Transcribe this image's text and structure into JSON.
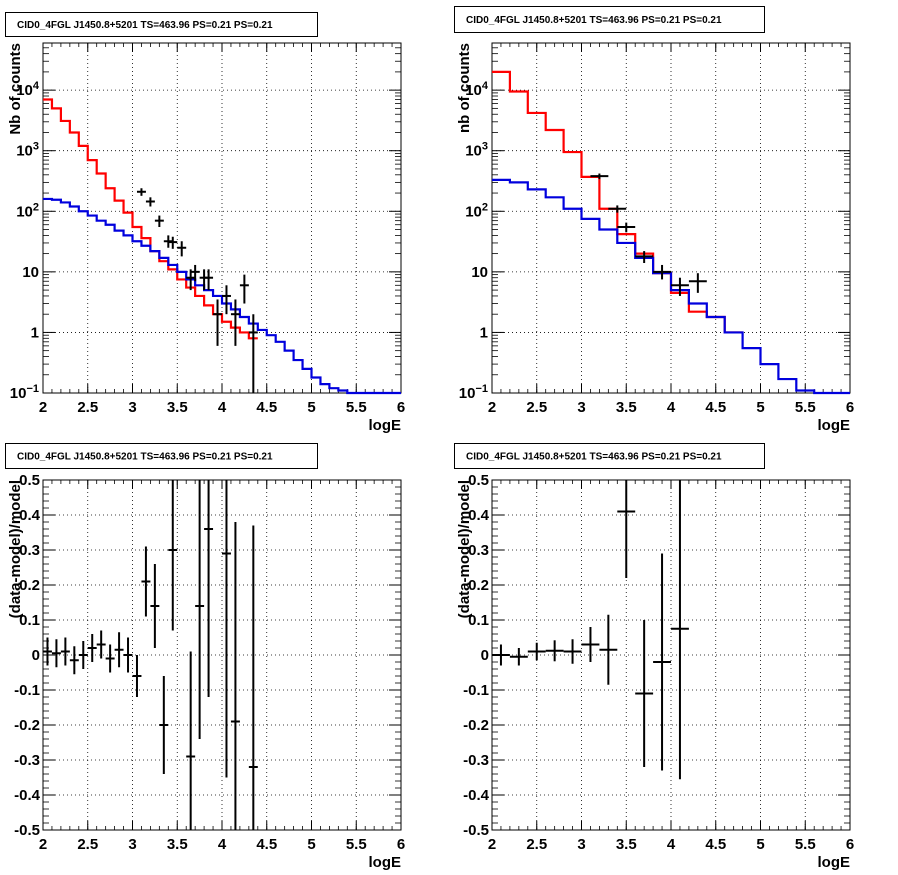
{
  "chart_data": [
    {
      "type": "line",
      "title": "CID0_4FGL J1450.8+5201 TS=463.96 PS=0.21 PS=0.21",
      "xlabel": "logE",
      "ylabel": "Nb of counts",
      "xlim": [
        2,
        6
      ],
      "ylim": [
        0.1,
        60000
      ],
      "yscale": "log",
      "grid": true,
      "x_ticks": [
        "2",
        "2.5",
        "3",
        "3.5",
        "4",
        "4.5",
        "5",
        "5.5",
        "6"
      ],
      "y_ticks": [
        {
          "value": 0.1,
          "base": "10",
          "exp": "−1"
        },
        {
          "value": 1,
          "label": "1"
        },
        {
          "value": 10,
          "label": "10"
        },
        {
          "value": 100,
          "base": "10",
          "exp": "2"
        },
        {
          "value": 1000,
          "base": "10",
          "exp": "3"
        },
        {
          "value": 10000,
          "base": "10",
          "exp": "4"
        }
      ],
      "series": [
        {
          "style": "step",
          "color": "#ff0000",
          "bin_edges": [
            2,
            2.1,
            2.2,
            2.3,
            2.4,
            2.5,
            2.6,
            2.7,
            2.8,
            2.9,
            3.0,
            3.1,
            3.2,
            3.3,
            3.4,
            3.5,
            3.6,
            3.7,
            3.8,
            3.9,
            4.0,
            4.1,
            4.2,
            4.3,
            4.4
          ],
          "values": [
            7000,
            5000,
            3100,
            2000,
            1200,
            700,
            420,
            240,
            150,
            95,
            55,
            36,
            22,
            15,
            11,
            7.5,
            5.5,
            4,
            2.8,
            2,
            1.5,
            1.2,
            1,
            0.8
          ]
        },
        {
          "style": "step",
          "color": "#0000dd",
          "bin_edges": [
            2,
            2.1,
            2.2,
            2.3,
            2.4,
            2.5,
            2.6,
            2.7,
            2.8,
            2.9,
            3.0,
            3.1,
            3.2,
            3.3,
            3.4,
            3.5,
            3.6,
            3.7,
            3.8,
            3.9,
            4.0,
            4.1,
            4.2,
            4.3,
            4.4,
            4.5,
            4.6,
            4.7,
            4.8,
            4.9,
            5.0,
            5.1,
            5.2,
            5.3,
            5.4,
            6.0
          ],
          "values": [
            160,
            155,
            140,
            120,
            100,
            85,
            70,
            60,
            48,
            40,
            32,
            27,
            22,
            17,
            13,
            10,
            7.5,
            6,
            5,
            4,
            3,
            2.4,
            1.8,
            1.4,
            1.1,
            0.9,
            0.7,
            0.5,
            0.35,
            0.25,
            0.18,
            0.14,
            0.12,
            0.11,
            0.1
          ]
        },
        {
          "style": "errorbar",
          "color": "#000000",
          "x": [
            3.1,
            3.2,
            3.3,
            3.4,
            3.45,
            3.55,
            3.65,
            3.7,
            3.8,
            3.85,
            3.95,
            4.05,
            4.15,
            4.25,
            4.35
          ],
          "xerr": [
            0.05,
            0.05,
            0.05,
            0.05,
            0.05,
            0.05,
            0.05,
            0.05,
            0.05,
            0.05,
            0.05,
            0.05,
            0.05,
            0.05,
            0.05
          ],
          "y": [
            210,
            145,
            70,
            32,
            31,
            25,
            8,
            10,
            8,
            8,
            2,
            4,
            2,
            6,
            1
          ],
          "ylo": [
            180,
            120,
            55,
            25,
            24,
            18,
            5,
            7,
            5,
            5,
            0.6,
            2,
            0.6,
            3,
            0.1
          ],
          "yhi": [
            240,
            170,
            85,
            40,
            38,
            32,
            11,
            13,
            11,
            11,
            3.5,
            6,
            3.5,
            9,
            2
          ]
        }
      ]
    },
    {
      "type": "line",
      "title": "CID0_4FGL J1450.8+5201 TS=463.96 PS=0.21 PS=0.21",
      "xlabel": "logE",
      "ylabel": "nb of counts",
      "xlim": [
        2,
        6
      ],
      "ylim": [
        0.1,
        60000
      ],
      "yscale": "log",
      "grid": true,
      "x_ticks": [
        "2",
        "2.5",
        "3",
        "3.5",
        "4",
        "4.5",
        "5",
        "5.5",
        "6"
      ],
      "y_ticks": [
        {
          "value": 0.1,
          "base": "10",
          "exp": "−1"
        },
        {
          "value": 1,
          "label": "1"
        },
        {
          "value": 10,
          "label": "10"
        },
        {
          "value": 100,
          "base": "10",
          "exp": "2"
        },
        {
          "value": 1000,
          "base": "10",
          "exp": "3"
        },
        {
          "value": 10000,
          "base": "10",
          "exp": "4"
        }
      ],
      "series": [
        {
          "style": "step",
          "color": "#ff0000",
          "bin_edges": [
            2,
            2.2,
            2.4,
            2.6,
            2.8,
            3.0,
            3.2,
            3.4,
            3.6,
            3.8,
            4.0,
            4.2,
            4.4,
            4.6,
            4.8
          ],
          "values": [
            20000,
            9500,
            4200,
            2200,
            950,
            370,
            110,
            42,
            20,
            9.5,
            4.5,
            2.2,
            1.8,
            1
          ]
        },
        {
          "style": "step",
          "color": "#0000dd",
          "bin_edges": [
            2,
            2.2,
            2.4,
            2.6,
            2.8,
            3.0,
            3.2,
            3.4,
            3.6,
            3.8,
            4.0,
            4.2,
            4.4,
            4.6,
            4.8,
            5.0,
            5.2,
            5.4,
            5.6,
            6.0
          ],
          "values": [
            330,
            300,
            230,
            170,
            110,
            75,
            50,
            30,
            17,
            9.5,
            5,
            3,
            1.8,
            1,
            0.55,
            0.3,
            0.17,
            0.11,
            0.1
          ]
        },
        {
          "style": "errorbar",
          "color": "#000000",
          "x": [
            3.2,
            3.4,
            3.5,
            3.7,
            3.9,
            4.1,
            4.3
          ],
          "xerr": [
            0.1,
            0.1,
            0.1,
            0.1,
            0.1,
            0.1,
            0.1
          ],
          "y": [
            380,
            110,
            55,
            18,
            10,
            6,
            7
          ],
          "ylo": [
            340,
            95,
            45,
            14,
            7.5,
            4,
            4.5
          ],
          "yhi": [
            420,
            125,
            65,
            22,
            13,
            8,
            9.5
          ]
        }
      ]
    },
    {
      "type": "scatter",
      "title": "CID0_4FGL J1450.8+5201 TS=463.96 PS=0.21 PS=0.21",
      "xlabel": "logE",
      "ylabel": "(data-model)/model",
      "xlim": [
        2,
        6
      ],
      "ylim": [
        -0.5,
        0.5
      ],
      "grid": true,
      "x_ticks": [
        "2",
        "2.5",
        "3",
        "3.5",
        "4",
        "4.5",
        "5",
        "5.5",
        "6"
      ],
      "y_ticks": [
        "-0.5",
        "-0.4",
        "-0.3",
        "-0.2",
        "-0.1",
        "0",
        "0.1",
        "0.2",
        "0.3",
        "0.4",
        "0.5"
      ],
      "series": [
        {
          "style": "errorbar",
          "color": "#000000",
          "x": [
            2.05,
            2.15,
            2.25,
            2.35,
            2.45,
            2.55,
            2.65,
            2.75,
            2.85,
            2.95,
            3.05,
            3.15,
            3.25,
            3.35,
            3.45,
            3.65,
            3.75,
            3.85,
            4.05,
            4.15,
            4.35
          ],
          "y": [
            0.01,
            0.005,
            0.01,
            -0.015,
            0.0,
            0.02,
            0.03,
            -0.01,
            0.015,
            0.0,
            -0.06,
            0.21,
            0.14,
            -0.2,
            0.3,
            -0.29,
            0.14,
            0.36,
            0.29,
            -0.19,
            -0.32
          ],
          "err": [
            0.04,
            0.04,
            0.04,
            0.04,
            0.04,
            0.04,
            0.04,
            0.04,
            0.05,
            0.05,
            0.06,
            0.1,
            0.12,
            0.14,
            0.23,
            0.3,
            0.38,
            0.48,
            0.64,
            0.57,
            0.69
          ],
          "xerr": 0.05
        }
      ]
    },
    {
      "type": "scatter",
      "title": "CID0_4FGL J1450.8+5201 TS=463.96 PS=0.21 PS=0.21",
      "xlabel": "logE",
      "ylabel": "(data-model)/model",
      "xlim": [
        2,
        6
      ],
      "ylim": [
        -0.5,
        0.5
      ],
      "grid": true,
      "x_ticks": [
        "2",
        "2.5",
        "3",
        "3.5",
        "4",
        "4.5",
        "5",
        "5.5",
        "6"
      ],
      "y_ticks": [
        "-0.5",
        "-0.4",
        "-0.3",
        "-0.2",
        "-0.1",
        "0",
        "0.1",
        "0.2",
        "0.3",
        "0.4",
        "0.5"
      ],
      "series": [
        {
          "style": "errorbar",
          "color": "#000000",
          "x": [
            2.1,
            2.3,
            2.5,
            2.7,
            2.9,
            3.1,
            3.3,
            3.5,
            3.7,
            3.9,
            4.1
          ],
          "y": [
            0.0,
            -0.005,
            0.01,
            0.012,
            0.01,
            0.03,
            0.015,
            0.41,
            -0.11,
            -0.02,
            0.075
          ],
          "err": [
            0.03,
            0.025,
            0.025,
            0.03,
            0.035,
            0.05,
            0.1,
            0.19,
            0.21,
            0.31,
            0.43
          ],
          "xerr": 0.1
        }
      ]
    }
  ]
}
